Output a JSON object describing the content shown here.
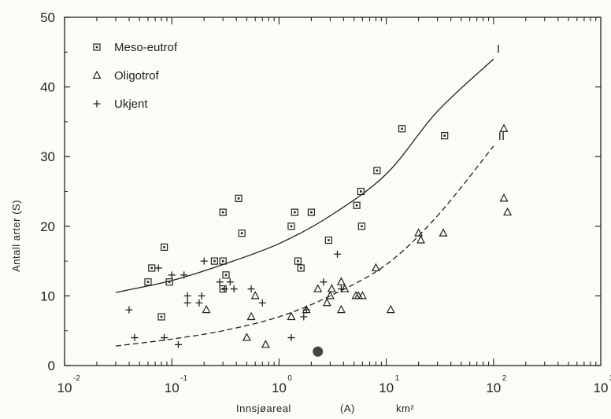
{
  "chart_data": {
    "type": "scatter",
    "xscale": "log",
    "xlim": [
      0.01,
      1000
    ],
    "ylim": [
      0,
      50
    ],
    "yticks": [
      0,
      10,
      20,
      30,
      40,
      50
    ],
    "xticks": [
      {
        "value": 0.01,
        "base": "10",
        "exp": "-2"
      },
      {
        "value": 0.1,
        "base": "10",
        "exp": "-1"
      },
      {
        "value": 1,
        "base": "10",
        "exp": "0"
      },
      {
        "value": 10,
        "base": "10",
        "exp": "1"
      },
      {
        "value": 100,
        "base": "10",
        "exp": "2"
      },
      {
        "value": 1000,
        "base": "10",
        "exp": "3"
      }
    ],
    "xlabel": {
      "name": "Innsjøareal",
      "symbol": "(A)",
      "unit": "km²"
    },
    "ylabel": "Antall  arter   (S)",
    "legend_position": "top-left",
    "grid": false,
    "series": [
      {
        "name": "Meso-eutrof",
        "marker": "square",
        "points": [
          [
            0.06,
            12
          ],
          [
            0.065,
            14
          ],
          [
            0.08,
            7
          ],
          [
            0.085,
            17
          ],
          [
            0.095,
            12
          ],
          [
            0.25,
            15
          ],
          [
            0.3,
            22
          ],
          [
            0.3,
            15
          ],
          [
            0.3,
            11
          ],
          [
            0.32,
            13
          ],
          [
            0.42,
            24
          ],
          [
            0.45,
            19
          ],
          [
            1.3,
            20
          ],
          [
            1.4,
            22
          ],
          [
            1.5,
            15
          ],
          [
            1.6,
            14
          ],
          [
            2.0,
            22
          ],
          [
            2.9,
            18
          ],
          [
            5.3,
            23
          ],
          [
            5.8,
            25
          ],
          [
            5.9,
            20
          ],
          [
            8.2,
            28
          ],
          [
            14,
            34
          ],
          [
            35,
            33
          ]
        ]
      },
      {
        "name": "Oligotrof",
        "marker": "triangle",
        "points": [
          [
            0.21,
            8
          ],
          [
            0.5,
            4
          ],
          [
            0.55,
            7
          ],
          [
            0.6,
            10
          ],
          [
            0.75,
            3
          ],
          [
            1.3,
            7
          ],
          [
            1.8,
            8
          ],
          [
            2.3,
            11
          ],
          [
            2.8,
            9
          ],
          [
            3.0,
            10
          ],
          [
            3.1,
            11
          ],
          [
            3.8,
            12
          ],
          [
            3.8,
            8
          ],
          [
            4.1,
            11
          ],
          [
            5.2,
            10
          ],
          [
            5.5,
            10
          ],
          [
            6.0,
            10
          ],
          [
            8.0,
            14
          ],
          [
            11,
            8
          ],
          [
            20,
            19
          ],
          [
            21,
            18
          ],
          [
            34,
            19
          ],
          [
            125,
            34
          ],
          [
            125,
            24
          ],
          [
            135,
            22
          ]
        ]
      },
      {
        "name": "Ukjent",
        "marker": "plus",
        "points": [
          [
            0.04,
            8
          ],
          [
            0.045,
            4
          ],
          [
            0.075,
            14
          ],
          [
            0.085,
            4
          ],
          [
            0.1,
            13
          ],
          [
            0.115,
            3
          ],
          [
            0.13,
            13
          ],
          [
            0.14,
            10
          ],
          [
            0.14,
            9
          ],
          [
            0.18,
            9
          ],
          [
            0.19,
            10
          ],
          [
            0.2,
            15
          ],
          [
            0.28,
            12
          ],
          [
            0.31,
            11
          ],
          [
            0.35,
            12
          ],
          [
            0.38,
            11
          ],
          [
            0.55,
            11
          ],
          [
            0.7,
            9
          ],
          [
            1.3,
            4
          ],
          [
            1.7,
            7
          ],
          [
            1.8,
            8
          ],
          [
            2.6,
            12
          ],
          [
            3.5,
            16
          ],
          [
            3.8,
            11
          ]
        ]
      }
    ],
    "highlight_point": {
      "x": 2.3,
      "y": 2
    },
    "curves": [
      {
        "label": "I",
        "style": "solid",
        "points": [
          [
            0.03,
            10.5
          ],
          [
            0.1,
            12.2
          ],
          [
            0.3,
            14.5
          ],
          [
            1,
            17.5
          ],
          [
            3,
            21.5
          ],
          [
            10,
            27.5
          ],
          [
            30,
            36.5
          ],
          [
            100,
            44
          ]
        ]
      },
      {
        "label": "II",
        "style": "dashed",
        "points": [
          [
            0.03,
            2.8
          ],
          [
            0.1,
            3.8
          ],
          [
            0.3,
            5.0
          ],
          [
            1,
            7.0
          ],
          [
            3,
            10.0
          ],
          [
            10,
            14.5
          ],
          [
            30,
            21.5
          ],
          [
            100,
            31.5
          ]
        ]
      }
    ]
  }
}
